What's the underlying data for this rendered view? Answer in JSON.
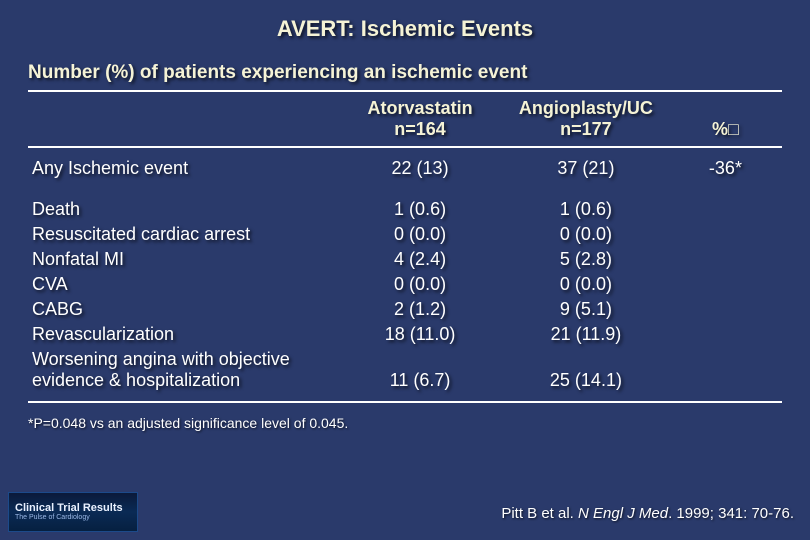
{
  "title": "AVERT: Ischemic Events",
  "subtitle": "Number (%) of patients experiencing an ischemic event",
  "columns": {
    "col1_line1": "Atorvastatin",
    "col1_line2": "n=164",
    "col2_line1": "Angioplasty/UC",
    "col2_line2": "n=177",
    "col3": "%□"
  },
  "summary": {
    "label": "Any Ischemic event",
    "atorvastatin": "22 (13)",
    "angioplasty": "37 (21)",
    "pct": "-36*"
  },
  "rows": [
    {
      "label": "Death",
      "a": "1 (0.6)",
      "b": "1 (0.6)",
      "p": ""
    },
    {
      "label": "Resuscitated cardiac arrest",
      "a": "0 (0.0)",
      "b": "0 (0.0)",
      "p": ""
    },
    {
      "label": "Nonfatal MI",
      "a": "4 (2.4)",
      "b": "5 (2.8)",
      "p": ""
    },
    {
      "label": "CVA",
      "a": "0 (0.0)",
      "b": "0 (0.0)",
      "p": ""
    },
    {
      "label": "CABG",
      "a": "2 (1.2)",
      "b": "9 (5.1)",
      "p": ""
    },
    {
      "label": "Revascularization",
      "a": "18 (11.0)",
      "b": "21 (11.9)",
      "p": ""
    },
    {
      "label": "Worsening angina with objective evidence & hospitalization",
      "a": "11 (6.7)",
      "b": "25 (14.1)",
      "p": ""
    }
  ],
  "footnote": "*P=0.048 vs an adjusted significance level of 0.045.",
  "citation_author": "Pitt B et al. ",
  "citation_journal": "N Engl J Med",
  "citation_rest": ". 1999; 341: 70-76.",
  "logo_line1": "Clinical Trial Results",
  "logo_line2": "The Pulse of Cardiology",
  "style": {
    "background_color": "#2a3a6b",
    "title_color": "#f5f3d6",
    "text_color": "#ffffff",
    "rule_color": "#ffffff",
    "title_fontsize": 22,
    "subtitle_fontsize": 19,
    "body_fontsize": 18,
    "footnote_fontsize": 14,
    "citation_fontsize": 15
  }
}
